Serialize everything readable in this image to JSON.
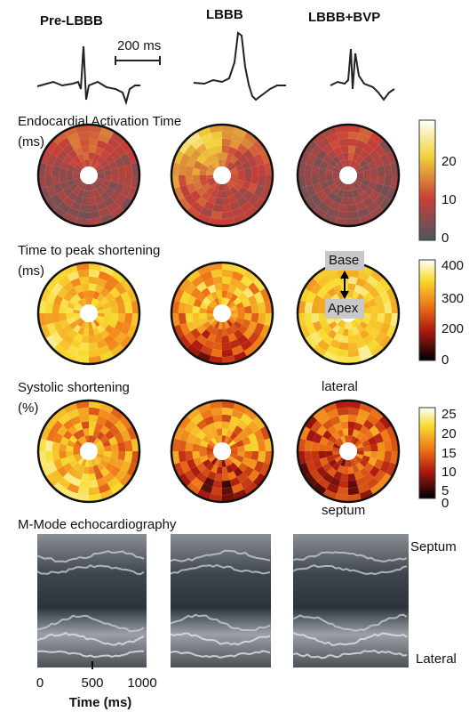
{
  "columns": [
    "Pre-LBBB",
    "LBBB",
    "LBBB+BVP"
  ],
  "scale_bar": "200 ms",
  "rows": [
    {
      "title": "Endocardial Activation Time",
      "unit": "(ms)",
      "colorbar_ticks": [
        20,
        10,
        0
      ]
    },
    {
      "title": "Time to peak shortening",
      "unit": "(ms)",
      "colorbar_ticks": [
        400,
        300,
        200,
        0
      ]
    },
    {
      "title": "Systolic shortening",
      "unit": "(%)",
      "colorbar_ticks": [
        25,
        20,
        15,
        10,
        5,
        0
      ]
    }
  ],
  "annotations": {
    "base": "Base",
    "apex": "Apex",
    "lateral": "lateral",
    "septum": "septum"
  },
  "mmode": {
    "title": "M-Mode echocardiography",
    "top_label": "Septum",
    "bottom_label": "Lateral",
    "x_ticks": [
      0,
      500,
      1000
    ],
    "x_label": "Time (ms)"
  }
}
